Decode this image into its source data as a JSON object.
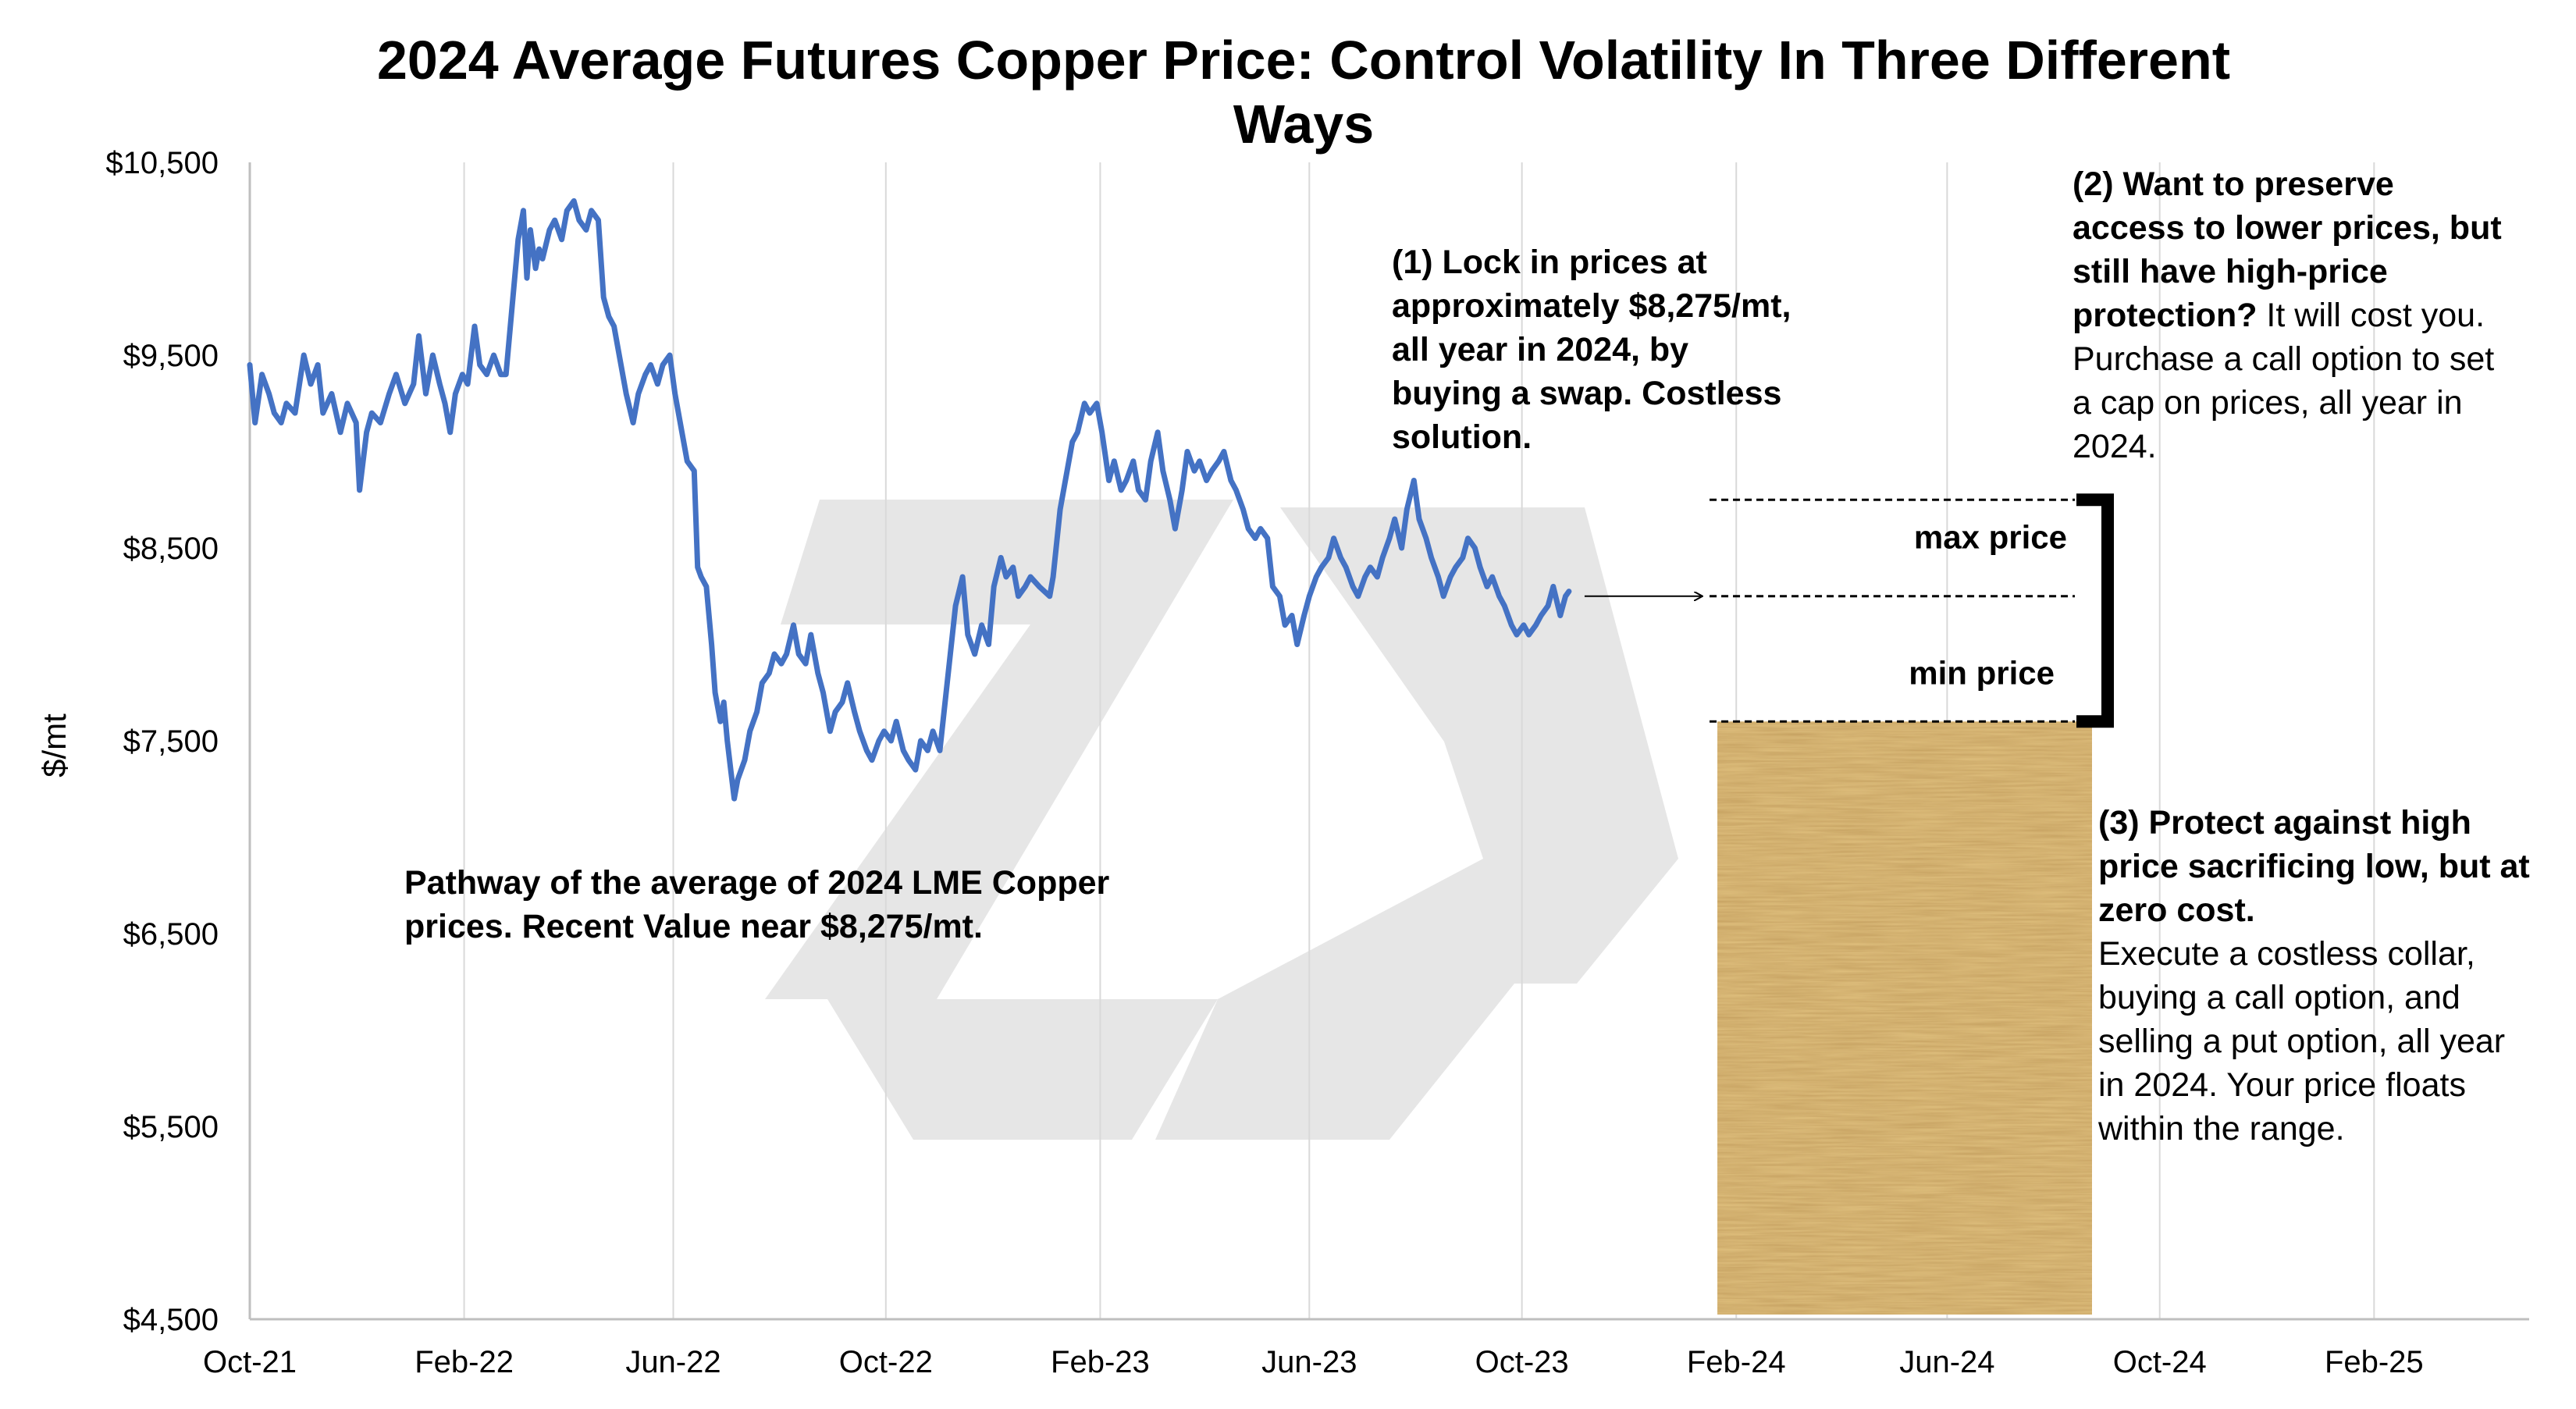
{
  "chart_data": {
    "type": "line",
    "title_lines": [
      "2024 Average Futures Copper Price: Control Volatility In Three Different",
      "Ways"
    ],
    "ylabel": "$/mt",
    "xlabel": "",
    "ylim": [
      4500,
      10500
    ],
    "yticks": [
      {
        "value": 4500,
        "label": "$4,500"
      },
      {
        "value": 5500,
        "label": "$5,500"
      },
      {
        "value": 6500,
        "label": "$6,500"
      },
      {
        "value": 7500,
        "label": "$7,500"
      },
      {
        "value": 8500,
        "label": "$8,500"
      },
      {
        "value": 9500,
        "label": "$9,500"
      },
      {
        "value": 10500,
        "label": "$10,500"
      }
    ],
    "xlim": [
      "2021-10-01",
      "2025-05-01"
    ],
    "xticks": [
      {
        "date": "2021-10-01",
        "label": "Oct-21"
      },
      {
        "date": "2022-02-01",
        "label": "Feb-22"
      },
      {
        "date": "2022-06-01",
        "label": "Jun-22"
      },
      {
        "date": "2022-10-01",
        "label": "Oct-22"
      },
      {
        "date": "2023-02-01",
        "label": "Feb-23"
      },
      {
        "date": "2023-06-01",
        "label": "Jun-23"
      },
      {
        "date": "2023-10-01",
        "label": "Oct-23"
      },
      {
        "date": "2024-02-01",
        "label": "Feb-24"
      },
      {
        "date": "2024-06-01",
        "label": "Jun-24"
      },
      {
        "date": "2024-10-01",
        "label": "Oct-24"
      },
      {
        "date": "2025-02-01",
        "label": "Feb-25"
      }
    ],
    "grid": "vertical",
    "colors": {
      "line": "#4472C4",
      "grid": "#d9d9d9",
      "axis": "#bfbfbf",
      "parchment": "#e0c07e"
    },
    "series": [
      {
        "points": [
          [
            "2021-10-01",
            9450
          ],
          [
            "2021-10-04",
            9150
          ],
          [
            "2021-10-08",
            9400
          ],
          [
            "2021-10-12",
            9300
          ],
          [
            "2021-10-15",
            9200
          ],
          [
            "2021-10-19",
            9150
          ],
          [
            "2021-10-22",
            9250
          ],
          [
            "2021-10-27",
            9200
          ],
          [
            "2021-11-01",
            9500
          ],
          [
            "2021-11-05",
            9350
          ],
          [
            "2021-11-09",
            9450
          ],
          [
            "2021-11-12",
            9200
          ],
          [
            "2021-11-17",
            9300
          ],
          [
            "2021-11-22",
            9100
          ],
          [
            "2021-11-26",
            9250
          ],
          [
            "2021-12-01",
            9150
          ],
          [
            "2021-12-03",
            8800
          ],
          [
            "2021-12-07",
            9100
          ],
          [
            "2021-12-10",
            9200
          ],
          [
            "2021-12-15",
            9150
          ],
          [
            "2021-12-20",
            9300
          ],
          [
            "2021-12-24",
            9400
          ],
          [
            "2021-12-29",
            9250
          ],
          [
            "2022-01-03",
            9350
          ],
          [
            "2022-01-06",
            9600
          ],
          [
            "2022-01-10",
            9300
          ],
          [
            "2022-01-14",
            9500
          ],
          [
            "2022-01-18",
            9350
          ],
          [
            "2022-01-21",
            9250
          ],
          [
            "2022-01-24",
            9100
          ],
          [
            "2022-01-27",
            9300
          ],
          [
            "2022-01-31",
            9400
          ],
          [
            "2022-02-03",
            9350
          ],
          [
            "2022-02-07",
            9650
          ],
          [
            "2022-02-10",
            9450
          ],
          [
            "2022-02-14",
            9400
          ],
          [
            "2022-02-18",
            9500
          ],
          [
            "2022-02-22",
            9400
          ],
          [
            "2022-02-25",
            9400
          ],
          [
            "2022-03-01",
            9800
          ],
          [
            "2022-03-04",
            10100
          ],
          [
            "2022-03-07",
            10250
          ],
          [
            "2022-03-09",
            9900
          ],
          [
            "2022-03-11",
            10150
          ],
          [
            "2022-03-14",
            9950
          ],
          [
            "2022-03-16",
            10050
          ],
          [
            "2022-03-18",
            10000
          ],
          [
            "2022-03-22",
            10150
          ],
          [
            "2022-03-25",
            10200
          ],
          [
            "2022-03-29",
            10100
          ],
          [
            "2022-04-01",
            10250
          ],
          [
            "2022-04-05",
            10300
          ],
          [
            "2022-04-08",
            10200
          ],
          [
            "2022-04-12",
            10150
          ],
          [
            "2022-04-15",
            10250
          ],
          [
            "2022-04-19",
            10200
          ],
          [
            "2022-04-22",
            9800
          ],
          [
            "2022-04-25",
            9700
          ],
          [
            "2022-04-28",
            9650
          ],
          [
            "2022-05-02",
            9450
          ],
          [
            "2022-05-05",
            9300
          ],
          [
            "2022-05-09",
            9150
          ],
          [
            "2022-05-12",
            9300
          ],
          [
            "2022-05-16",
            9400
          ],
          [
            "2022-05-19",
            9450
          ],
          [
            "2022-05-23",
            9350
          ],
          [
            "2022-05-26",
            9450
          ],
          [
            "2022-05-30",
            9500
          ],
          [
            "2022-06-02",
            9300
          ],
          [
            "2022-06-06",
            9100
          ],
          [
            "2022-06-09",
            8950
          ],
          [
            "2022-06-13",
            8900
          ],
          [
            "2022-06-15",
            8400
          ],
          [
            "2022-06-17",
            8350
          ],
          [
            "2022-06-20",
            8300
          ],
          [
            "2022-06-23",
            8000
          ],
          [
            "2022-06-25",
            7750
          ],
          [
            "2022-06-28",
            7600
          ],
          [
            "2022-06-30",
            7700
          ],
          [
            "2022-07-02",
            7500
          ],
          [
            "2022-07-04",
            7350
          ],
          [
            "2022-07-06",
            7200
          ],
          [
            "2022-07-08",
            7300
          ],
          [
            "2022-07-12",
            7400
          ],
          [
            "2022-07-15",
            7550
          ],
          [
            "2022-07-19",
            7650
          ],
          [
            "2022-07-22",
            7800
          ],
          [
            "2022-07-26",
            7850
          ],
          [
            "2022-07-29",
            7950
          ],
          [
            "2022-08-02",
            7900
          ],
          [
            "2022-08-05",
            7950
          ],
          [
            "2022-08-09",
            8100
          ],
          [
            "2022-08-12",
            7950
          ],
          [
            "2022-08-16",
            7900
          ],
          [
            "2022-08-19",
            8050
          ],
          [
            "2022-08-23",
            7850
          ],
          [
            "2022-08-26",
            7750
          ],
          [
            "2022-08-30",
            7550
          ],
          [
            "2022-09-02",
            7650
          ],
          [
            "2022-09-06",
            7700
          ],
          [
            "2022-09-09",
            7800
          ],
          [
            "2022-09-13",
            7650
          ],
          [
            "2022-09-16",
            7550
          ],
          [
            "2022-09-20",
            7450
          ],
          [
            "2022-09-23",
            7400
          ],
          [
            "2022-09-27",
            7500
          ],
          [
            "2022-09-30",
            7550
          ],
          [
            "2022-10-04",
            7500
          ],
          [
            "2022-10-07",
            7600
          ],
          [
            "2022-10-11",
            7450
          ],
          [
            "2022-10-14",
            7400
          ],
          [
            "2022-10-18",
            7350
          ],
          [
            "2022-10-21",
            7500
          ],
          [
            "2022-10-25",
            7450
          ],
          [
            "2022-10-28",
            7550
          ],
          [
            "2022-11-01",
            7450
          ],
          [
            "2022-11-04",
            7700
          ],
          [
            "2022-11-07",
            7950
          ],
          [
            "2022-11-10",
            8200
          ],
          [
            "2022-11-14",
            8350
          ],
          [
            "2022-11-17",
            8050
          ],
          [
            "2022-11-21",
            7950
          ],
          [
            "2022-11-25",
            8100
          ],
          [
            "2022-11-29",
            8000
          ],
          [
            "2022-12-02",
            8300
          ],
          [
            "2022-12-06",
            8450
          ],
          [
            "2022-12-09",
            8350
          ],
          [
            "2022-12-13",
            8400
          ],
          [
            "2022-12-16",
            8250
          ],
          [
            "2022-12-20",
            8300
          ],
          [
            "2022-12-23",
            8350
          ],
          [
            "2022-12-28",
            8300
          ],
          [
            "2023-01-03",
            8250
          ],
          [
            "2023-01-05",
            8350
          ],
          [
            "2023-01-09",
            8700
          ],
          [
            "2023-01-12",
            8850
          ],
          [
            "2023-01-16",
            9050
          ],
          [
            "2023-01-19",
            9100
          ],
          [
            "2023-01-23",
            9250
          ],
          [
            "2023-01-26",
            9200
          ],
          [
            "2023-01-30",
            9250
          ],
          [
            "2023-02-02",
            9100
          ],
          [
            "2023-02-06",
            8850
          ],
          [
            "2023-02-09",
            8950
          ],
          [
            "2023-02-13",
            8800
          ],
          [
            "2023-02-16",
            8850
          ],
          [
            "2023-02-20",
            8950
          ],
          [
            "2023-02-23",
            8800
          ],
          [
            "2023-02-27",
            8750
          ],
          [
            "2023-03-02",
            8950
          ],
          [
            "2023-03-06",
            9100
          ],
          [
            "2023-03-09",
            8900
          ],
          [
            "2023-03-13",
            8750
          ],
          [
            "2023-03-16",
            8600
          ],
          [
            "2023-03-20",
            8800
          ],
          [
            "2023-03-23",
            9000
          ],
          [
            "2023-03-27",
            8900
          ],
          [
            "2023-03-30",
            8950
          ],
          [
            "2023-04-03",
            8850
          ],
          [
            "2023-04-06",
            8900
          ],
          [
            "2023-04-10",
            8950
          ],
          [
            "2023-04-13",
            9000
          ],
          [
            "2023-04-17",
            8850
          ],
          [
            "2023-04-20",
            8800
          ],
          [
            "2023-04-24",
            8700
          ],
          [
            "2023-04-27",
            8600
          ],
          [
            "2023-05-01",
            8550
          ],
          [
            "2023-05-04",
            8600
          ],
          [
            "2023-05-08",
            8550
          ],
          [
            "2023-05-11",
            8300
          ],
          [
            "2023-05-15",
            8250
          ],
          [
            "2023-05-18",
            8100
          ],
          [
            "2023-05-22",
            8150
          ],
          [
            "2023-05-25",
            8000
          ],
          [
            "2023-05-29",
            8150
          ],
          [
            "2023-06-01",
            8250
          ],
          [
            "2023-06-05",
            8350
          ],
          [
            "2023-06-08",
            8400
          ],
          [
            "2023-06-12",
            8450
          ],
          [
            "2023-06-15",
            8550
          ],
          [
            "2023-06-19",
            8450
          ],
          [
            "2023-06-22",
            8400
          ],
          [
            "2023-06-26",
            8300
          ],
          [
            "2023-06-29",
            8250
          ],
          [
            "2023-07-03",
            8350
          ],
          [
            "2023-07-06",
            8400
          ],
          [
            "2023-07-10",
            8350
          ],
          [
            "2023-07-13",
            8450
          ],
          [
            "2023-07-17",
            8550
          ],
          [
            "2023-07-20",
            8650
          ],
          [
            "2023-07-24",
            8500
          ],
          [
            "2023-07-27",
            8700
          ],
          [
            "2023-07-31",
            8850
          ],
          [
            "2023-08-03",
            8650
          ],
          [
            "2023-08-07",
            8550
          ],
          [
            "2023-08-10",
            8450
          ],
          [
            "2023-08-14",
            8350
          ],
          [
            "2023-08-17",
            8250
          ],
          [
            "2023-08-21",
            8350
          ],
          [
            "2023-08-24",
            8400
          ],
          [
            "2023-08-28",
            8450
          ],
          [
            "2023-08-31",
            8550
          ],
          [
            "2023-09-04",
            8500
          ],
          [
            "2023-09-07",
            8400
          ],
          [
            "2023-09-11",
            8300
          ],
          [
            "2023-09-14",
            8350
          ],
          [
            "2023-09-18",
            8250
          ],
          [
            "2023-09-21",
            8200
          ],
          [
            "2023-09-25",
            8100
          ],
          [
            "2023-09-28",
            8050
          ],
          [
            "2023-10-02",
            8100
          ],
          [
            "2023-10-05",
            8050
          ],
          [
            "2023-10-09",
            8100
          ],
          [
            "2023-10-12",
            8150
          ],
          [
            "2023-10-16",
            8200
          ],
          [
            "2023-10-19",
            8300
          ],
          [
            "2023-10-23",
            8150
          ],
          [
            "2023-10-26",
            8250
          ],
          [
            "2023-10-28",
            8275
          ]
        ]
      }
    ],
    "swap_arrow_to": "2024-01-01",
    "range_levels": {
      "max": 8750,
      "mid": 8250,
      "min": 7600
    },
    "range_labels": {
      "max": "max price",
      "min": "min price"
    },
    "notes": {
      "pathway": "Pathway of the average of 2024 LME Copper prices.  Recent Value near $8,275/mt.",
      "swap": "(1) Lock in prices at approximately $8,275/mt, all year in 2024, by buying a swap. Costless solution.",
      "call_bold": "(2) Want to preserve access to lower prices, but still have high-price protection?",
      "call_rest": " It will cost you. Purchase a call option to set a cap on prices, all year in 2024.",
      "collar_bold": "(3) Protect against high price sacrificing low, but at zero cost.",
      "collar_rest": "Execute a costless collar, buying a call option, and selling a put option, all year in 2024. Your price floats within the range."
    }
  }
}
